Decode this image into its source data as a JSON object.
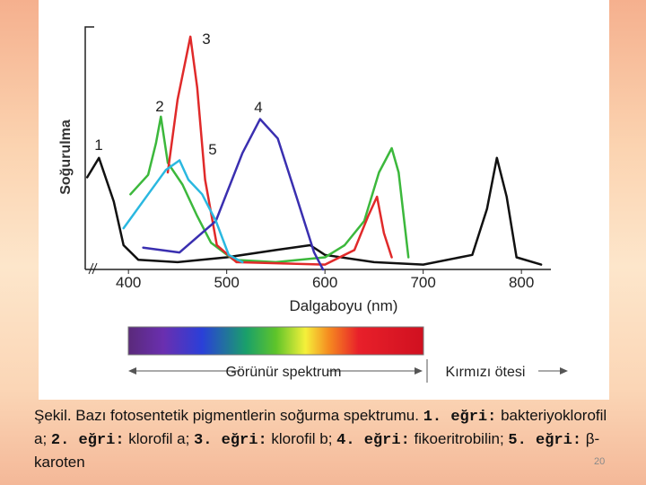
{
  "chart_data": {
    "type": "line",
    "xlabel": "Dalgaboyu (nm)",
    "ylabel": "Soğurulma",
    "xlim": [
      356,
      830
    ],
    "xticks": [
      400,
      500,
      600,
      700,
      800
    ],
    "ylim": [
      0,
      100
    ],
    "series": [
      {
        "name": "1",
        "color": "#111111",
        "x": [
          358,
          370,
          385,
          395,
          410,
          450,
          500,
          550,
          585,
          600,
          650,
          700,
          750,
          765,
          775,
          785,
          795,
          820
        ],
        "values": [
          38,
          46,
          28,
          10,
          4,
          3,
          5,
          8,
          10,
          6,
          3,
          2,
          6,
          25,
          46,
          30,
          5,
          2
        ]
      },
      {
        "name": "2",
        "color": "#3cb83c",
        "x": [
          402,
          420,
          428,
          433,
          440,
          455,
          470,
          484,
          507,
          550,
          600,
          620,
          640,
          655,
          668,
          675,
          685
        ],
        "values": [
          31,
          39,
          52,
          63,
          44,
          35,
          22,
          11,
          4,
          3,
          5,
          10,
          20,
          40,
          50,
          40,
          5
        ]
      },
      {
        "name": "3",
        "color": "#e02a2a",
        "x": [
          440,
          450,
          463,
          470,
          478,
          490,
          510,
          600,
          630,
          644,
          653,
          660,
          668
        ],
        "values": [
          40,
          70,
          96,
          75,
          37,
          10,
          3,
          2,
          8,
          22,
          30,
          15,
          5
        ]
      },
      {
        "name": "4",
        "color": "#3a2fb0",
        "x": [
          415,
          452,
          489,
          516,
          534,
          552,
          571,
          589,
          598
        ],
        "values": [
          9,
          7,
          20,
          48,
          62,
          54,
          30,
          7,
          0
        ]
      },
      {
        "name": "5",
        "color": "#2ab8e0",
        "x": [
          395,
          420,
          438,
          452,
          461,
          475,
          489,
          502,
          516
        ],
        "values": [
          17,
          31,
          41,
          45,
          37,
          31,
          20,
          6,
          3
        ]
      }
    ],
    "annotations": [
      "Görünür spektrum",
      "Kırmızı ötesi"
    ]
  },
  "caption": {
    "intro": "Şekil. Bazı fotosentetik pigmentlerin soğurma spektrumu.",
    "items": [
      {
        "label": "1. eğri:",
        "text": "bakteriyoklorofil a;"
      },
      {
        "label": "2. eğri:",
        "text": "klorofil a;"
      },
      {
        "label": "3. eğri:",
        "text": "klorofil b;"
      },
      {
        "label": "4. eğri:",
        "text": "fikoeritrobilin;"
      },
      {
        "label": "5. eğri:",
        "text": "β-karoten"
      }
    ]
  },
  "page_number": "20"
}
